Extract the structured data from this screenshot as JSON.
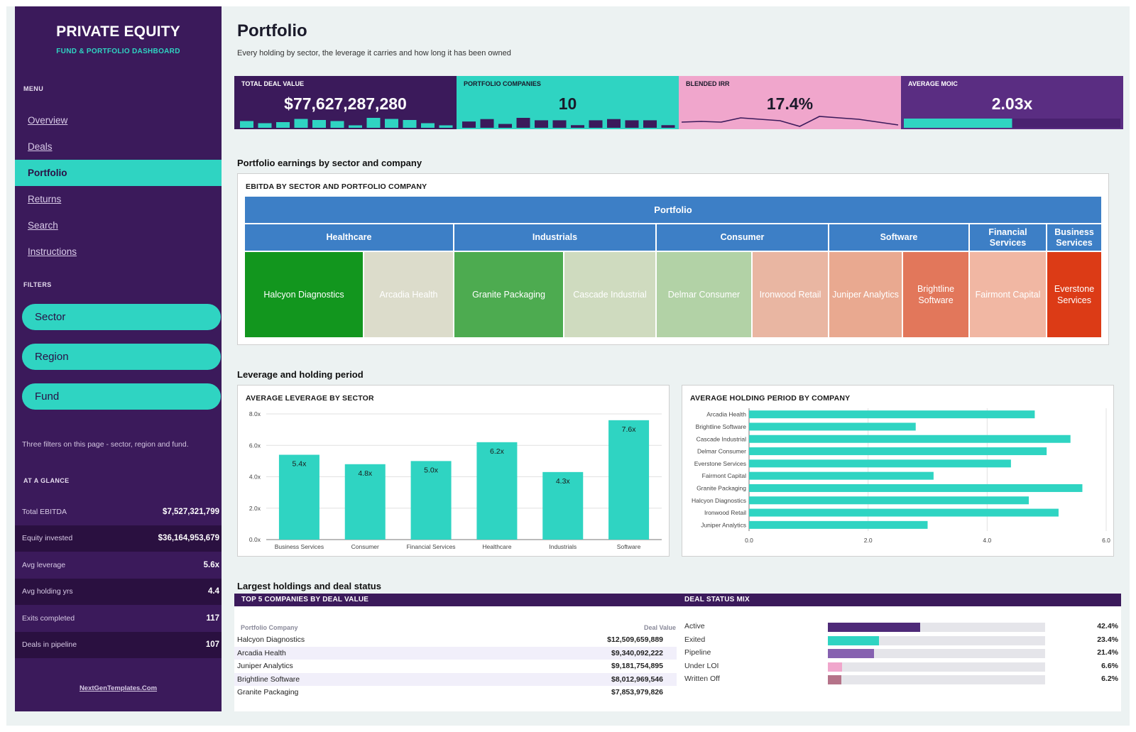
{
  "sidebar": {
    "title": "PRIVATE EQUITY",
    "subtitle": "FUND & PORTFOLIO DASHBOARD",
    "menu_heading": "MENU",
    "menu": [
      {
        "label": "Overview",
        "active": false
      },
      {
        "label": "Deals",
        "active": false
      },
      {
        "label": "Portfolio",
        "active": true
      },
      {
        "label": "Returns",
        "active": false
      },
      {
        "label": "Search",
        "active": false
      },
      {
        "label": "Instructions",
        "active": false
      }
    ],
    "filters_heading": "FILTERS",
    "filters": [
      "Sector",
      "Region",
      "Fund"
    ],
    "filters_note": "Three filters on this page - sector, region and fund.",
    "glance_heading": "AT A GLANCE",
    "glance": [
      {
        "label": "Total EBITDA",
        "value": "$7,527,321,799"
      },
      {
        "label": "Equity invested",
        "value": "$36,164,953,679"
      },
      {
        "label": "Avg leverage",
        "value": "5.6x"
      },
      {
        "label": "Avg holding yrs",
        "value": "4.4"
      },
      {
        "label": "Exits completed",
        "value": "117"
      },
      {
        "label": "Deals in pipeline",
        "value": "107"
      }
    ],
    "footer": "NextGenTemplates.Com"
  },
  "header": {
    "title": "Portfolio",
    "subtitle": "Every holding by sector, the leverage it carries and how long it has been owned"
  },
  "kpis": [
    {
      "label": "TOTAL DEAL VALUE",
      "value": "$77,627,287,280",
      "bg": "#3b1a5b",
      "fg": "#ffffff",
      "accent": "#2fd4c2",
      "spark": [
        5,
        3,
        4,
        7,
        6,
        5,
        1,
        8,
        7,
        6,
        3,
        1
      ]
    },
    {
      "label": "PORTFOLIO COMPANIES",
      "value": "10",
      "bg": "#2fd4c2",
      "fg": "#1a1a2a",
      "accent": "#3b1a5b",
      "spark": [
        4,
        6,
        2,
        7,
        5,
        5,
        1,
        5,
        6,
        5,
        5,
        1
      ]
    },
    {
      "label": "BLENDED IRR",
      "value": "17.4%",
      "bg": "#f0a6cc",
      "fg": "#1a1a2a",
      "accent": "#3b1a5b",
      "line": [
        4,
        4.5,
        4,
        7,
        6,
        5,
        1,
        8,
        7,
        6,
        4,
        2
      ]
    },
    {
      "label": "AVERAGE MOIC",
      "value": "2.03x",
      "bg": "#5a2d82",
      "fg": "#ffffff",
      "accent": "#2fd4c2",
      "progress": 0.5
    }
  ],
  "sections": {
    "earnings": "Portfolio earnings by sector and company",
    "leverage": "Leverage and holding period",
    "largest": "Largest holdings and deal status"
  },
  "treemap": {
    "title": "EBITDA BY SECTOR AND PORTFOLIO COMPANY",
    "root": "Portfolio",
    "sectors": [
      {
        "name": "Healthcare",
        "companies": [
          {
            "name": "Halcyon Diagnostics",
            "color": "#12961e"
          },
          {
            "name": "Arcadia Health",
            "color": "#dcdccb"
          }
        ]
      },
      {
        "name": "Industrials",
        "companies": [
          {
            "name": "Granite Packaging",
            "color": "#4dab50"
          },
          {
            "name": "Cascade Industrial",
            "color": "#cfdbbf"
          }
        ]
      },
      {
        "name": "Consumer",
        "companies": [
          {
            "name": "Delmar Consumer",
            "color": "#b2d2a6"
          },
          {
            "name": "Ironwood Retail",
            "color": "#e9b6a2"
          }
        ]
      },
      {
        "name": "Software",
        "companies": [
          {
            "name": "Juniper Analytics",
            "color": "#e9a990"
          },
          {
            "name": "Brightline Software",
            "color": "#e2775b"
          }
        ]
      },
      {
        "name": "Financial Services",
        "companies": [
          {
            "name": "Fairmont Capital",
            "color": "#f1b7a3"
          }
        ]
      },
      {
        "name": "Business Services",
        "companies": [
          {
            "name": "Everstone Services",
            "color": "#dc3b16"
          }
        ]
      }
    ]
  },
  "chart_data": [
    {
      "type": "bar",
      "title": "AVERAGE LEVERAGE BY SECTOR",
      "categories": [
        "Business Services",
        "Consumer",
        "Financial Services",
        "Healthcare",
        "Industrials",
        "Software"
      ],
      "values": [
        5.4,
        4.8,
        5.0,
        6.2,
        4.3,
        7.6
      ],
      "data_labels": [
        "5.4x",
        "4.8x",
        "5.0x",
        "6.2x",
        "4.3x",
        "7.6x"
      ],
      "ylim": [
        0,
        8
      ],
      "yticks": [
        "0.0x",
        "2.0x",
        "4.0x",
        "6.0x",
        "8.0x"
      ],
      "grid": true,
      "color": "#2fd4c2"
    },
    {
      "type": "bar",
      "orientation": "horizontal",
      "title": "AVERAGE HOLDING PERIOD BY COMPANY",
      "categories": [
        "Arcadia Health",
        "Brightline Software",
        "Cascade Industrial",
        "Delmar Consumer",
        "Everstone Services",
        "Fairmont Capital",
        "Granite Packaging",
        "Halcyon Diagnostics",
        "Ironwood Retail",
        "Juniper Analytics"
      ],
      "values": [
        4.8,
        2.8,
        5.4,
        5.0,
        4.4,
        3.1,
        5.6,
        4.7,
        5.2,
        3.0
      ],
      "xlim": [
        0,
        6
      ],
      "xticks": [
        "0.0",
        "2.0",
        "4.0",
        "6.0"
      ],
      "grid": true,
      "color": "#2fd4c2"
    }
  ],
  "top5": {
    "title": "TOP 5 COMPANIES BY DEAL VALUE",
    "col_company": "Portfolio Company",
    "col_value": "Deal Value",
    "rows": [
      {
        "company": "Halcyon Diagnostics",
        "value": "$12,509,659,889"
      },
      {
        "company": "Arcadia Health",
        "value": "$9,340,092,222"
      },
      {
        "company": "Juniper Analytics",
        "value": "$9,181,754,895"
      },
      {
        "company": "Brightline Software",
        "value": "$8,012,969,546"
      },
      {
        "company": "Granite Packaging",
        "value": "$7,853,979,826"
      }
    ]
  },
  "status_mix": {
    "title": "DEAL STATUS MIX",
    "rows": [
      {
        "label": "Active",
        "pct": "42.4%",
        "value": 0.424,
        "color": "#4e2a78"
      },
      {
        "label": "Exited",
        "pct": "23.4%",
        "value": 0.234,
        "color": "#2fd4c2"
      },
      {
        "label": "Pipeline",
        "pct": "21.4%",
        "value": 0.214,
        "color": "#8661b0"
      },
      {
        "label": "Under LOI",
        "pct": "6.6%",
        "value": 0.066,
        "color": "#f0a6cc"
      },
      {
        "label": "Written Off",
        "pct": "6.2%",
        "value": 0.062,
        "color": "#b57389"
      }
    ]
  }
}
